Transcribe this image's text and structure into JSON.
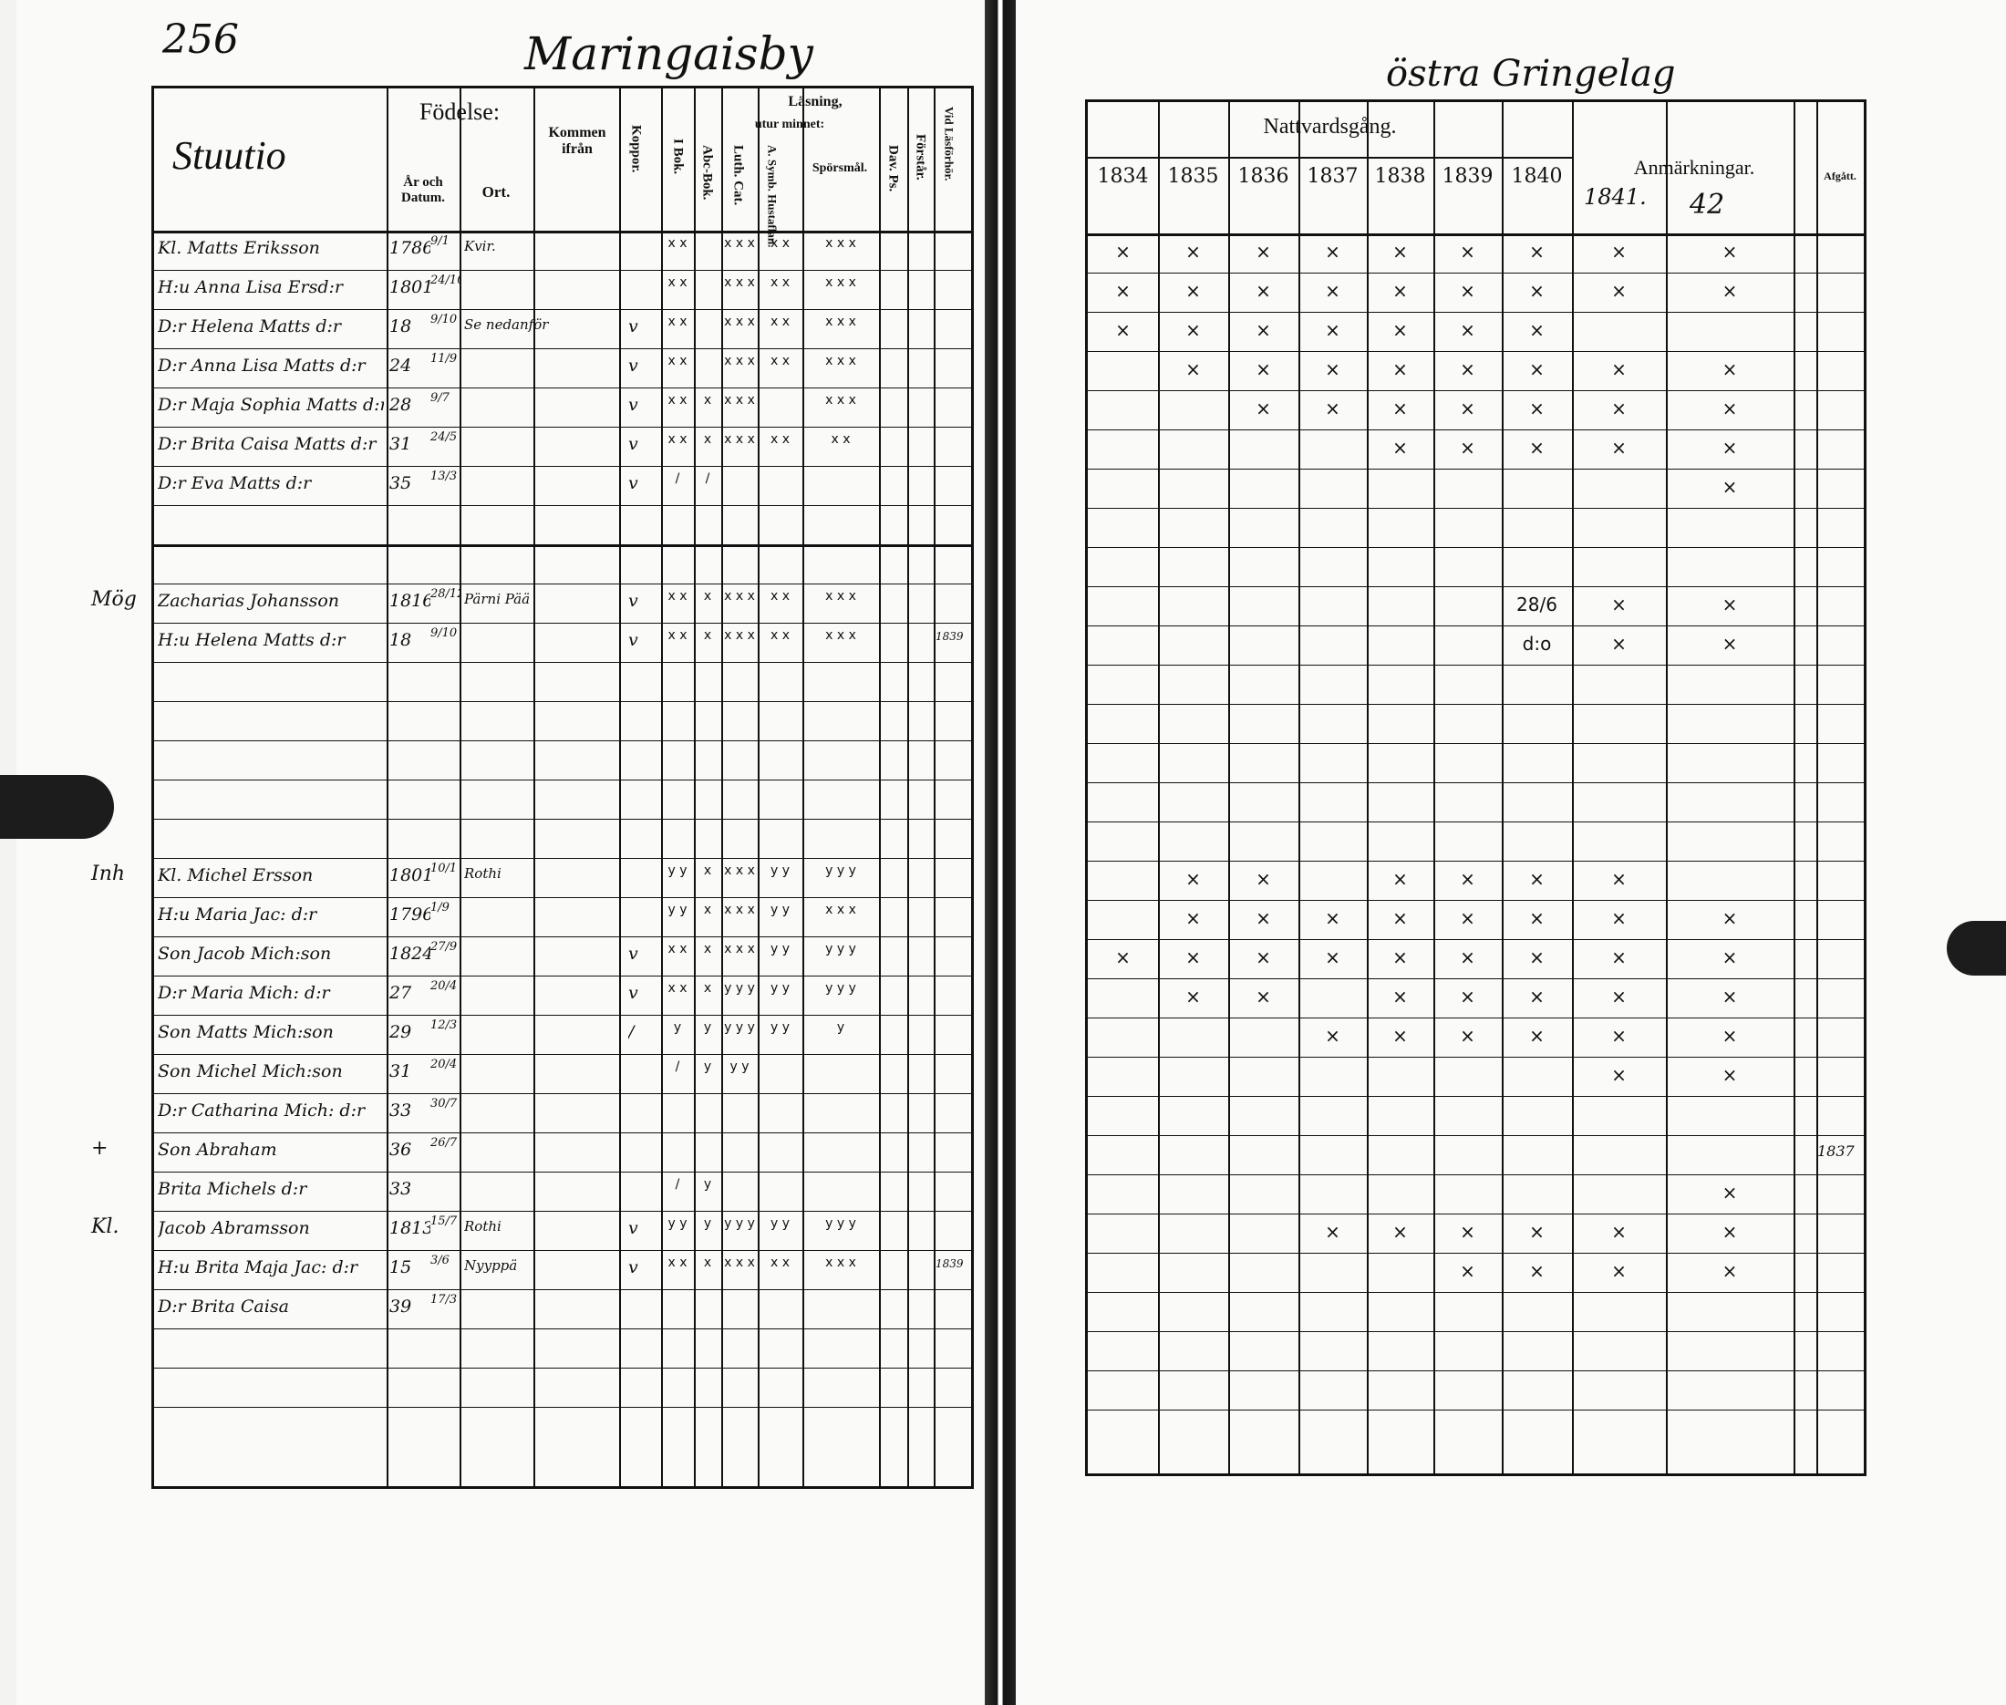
{
  "left": {
    "page_number": "256",
    "village": "Maringaisby",
    "name_header": "Stuutio",
    "headers": {
      "fodelse": "Födelse:",
      "ar_och_datum": "År och Datum.",
      "ort": "Ort.",
      "kommen_ifran": "Kommen ifrån",
      "koppor": "Koppor.",
      "lasning": "Läsning,",
      "i_bok": "I Bok.",
      "utur_minnet": "utur minnet:",
      "abc_bok": "Abc-Bok.",
      "luth_cat": "Luth. Cat.",
      "a_symb": "A. Symb. Hustaflan.",
      "sporsmal": "Spörsmål.",
      "dav_ps": "Dav. Ps.",
      "forstar": "Förstår.",
      "vid_lasforhor": "Vid Läsförhör."
    },
    "rows": [
      {
        "row": 0,
        "margin": "",
        "name": "Kl. Matts Eriksson",
        "year": "1786",
        "date": "9/1",
        "ort": "Kvir.",
        "kommen": "",
        "koppor": "",
        "reading": [
          "x x",
          "",
          "x x x",
          "x x",
          "x x x"
        ],
        "vid": ""
      },
      {
        "row": 1,
        "margin": "",
        "name": "H:u Anna Lisa Ersd:r",
        "year": "1801",
        "date": "24/10",
        "ort": "",
        "kommen": "",
        "koppor": "",
        "reading": [
          "x x",
          "",
          "x x x",
          "x x",
          "x x x"
        ],
        "vid": ""
      },
      {
        "row": 2,
        "margin": "",
        "name": "D:r Helena Matts d:r",
        "year": "18",
        "date": "9/10",
        "ort": "",
        "kommen": "Se nedanför",
        "koppor": "v",
        "reading": [
          "x x",
          "",
          "x x x",
          "x x",
          "x x x"
        ],
        "vid": ""
      },
      {
        "row": 3,
        "margin": "",
        "name": "D:r Anna Lisa Matts d:r",
        "year": "24",
        "date": "11/9",
        "ort": "",
        "kommen": "",
        "koppor": "v",
        "reading": [
          "x x",
          "",
          "x x x",
          "x x",
          "x x x"
        ],
        "vid": ""
      },
      {
        "row": 4,
        "margin": "",
        "name": "D:r Maja Sophia Matts d:r",
        "year": "28",
        "date": "9/7",
        "ort": "",
        "kommen": "",
        "koppor": "v",
        "reading": [
          "x x",
          "x",
          "x x x",
          "",
          "x x x"
        ],
        "vid": ""
      },
      {
        "row": 5,
        "margin": "",
        "name": "D:r Brita Caisa Matts d:r",
        "year": "31",
        "date": "24/5",
        "ort": "",
        "kommen": "",
        "koppor": "v",
        "reading": [
          "x x",
          "x",
          "x x x",
          "x x",
          "x x"
        ],
        "vid": ""
      },
      {
        "row": 6,
        "margin": "",
        "name": "D:r Eva Matts d:r",
        "year": "35",
        "date": "13/3",
        "ort": "",
        "kommen": "",
        "koppor": "v",
        "reading": [
          "/",
          "/",
          "",
          "",
          ""
        ],
        "vid": ""
      },
      {
        "row": 9,
        "margin": "Mög",
        "name": "Zacharias Johansson",
        "year": "1816",
        "date": "28/12",
        "ort": "Pärni Pää",
        "kommen": "",
        "koppor": "v",
        "reading": [
          "x x",
          "x",
          "x x x",
          "x x",
          "x x x"
        ],
        "vid": ""
      },
      {
        "row": 10,
        "margin": "",
        "name": "H:u Helena Matts d:r",
        "year": "18",
        "date": "9/10",
        "ort": "",
        "kommen": "",
        "koppor": "v",
        "reading": [
          "x x",
          "x",
          "x x x",
          "x x",
          "x x x"
        ],
        "vid": "1839"
      },
      {
        "row": 16,
        "margin": "Inh",
        "name": "Kl. Michel Ersson",
        "year": "1801",
        "date": "10/1",
        "ort": "Rothi",
        "kommen": "",
        "koppor": "",
        "reading": [
          "y y",
          "x",
          "x x x",
          "y y",
          "y y y"
        ],
        "vid": ""
      },
      {
        "row": 17,
        "margin": "",
        "name": "H:u Maria Jac: d:r",
        "year": "1796",
        "date": "1/9",
        "ort": "",
        "kommen": "",
        "koppor": "",
        "reading": [
          "y y",
          "x",
          "x x x",
          "y y",
          "x x x"
        ],
        "vid": ""
      },
      {
        "row": 18,
        "margin": "",
        "name": "Son Jacob Mich:son",
        "year": "1824",
        "date": "27/9",
        "ort": "",
        "kommen": "",
        "koppor": "v",
        "reading": [
          "x x",
          "x",
          "x x x",
          "y y",
          "y y y"
        ],
        "vid": ""
      },
      {
        "row": 19,
        "margin": "",
        "name": "D:r Maria Mich: d:r",
        "year": "27",
        "date": "20/4",
        "ort": "",
        "kommen": "",
        "koppor": "v",
        "reading": [
          "x x",
          "x",
          "y y y",
          "y y",
          "y y y"
        ],
        "vid": ""
      },
      {
        "row": 20,
        "margin": "",
        "name": "Son Matts Mich:son",
        "year": "29",
        "date": "12/3",
        "ort": "",
        "kommen": "",
        "koppor": "/",
        "reading": [
          "y",
          "y",
          "y y y",
          "y y",
          "y"
        ],
        "vid": ""
      },
      {
        "row": 21,
        "margin": "",
        "name": "Son Michel Mich:son",
        "year": "31",
        "date": "20/4",
        "ort": "",
        "kommen": "",
        "koppor": "",
        "reading": [
          "/",
          "y",
          "y y",
          "",
          ""
        ],
        "vid": ""
      },
      {
        "row": 22,
        "margin": "",
        "name": "D:r Catharina Mich: d:r",
        "year": "33",
        "date": "30/7",
        "ort": "",
        "kommen": "",
        "koppor": "",
        "reading": [
          "",
          "",
          "",
          "",
          ""
        ],
        "vid": ""
      },
      {
        "row": 23,
        "margin": "+",
        "name": "Son Abraham",
        "year": "36",
        "date": "26/7",
        "ort": "",
        "kommen": "",
        "koppor": "",
        "reading": [
          "",
          "",
          "",
          "",
          ""
        ],
        "vid": ""
      },
      {
        "row": 24,
        "margin": "",
        "name": "Brita Michels d:r",
        "year": "33",
        "date": "",
        "ort": "",
        "kommen": "",
        "koppor": "",
        "reading": [
          "/",
          "y",
          "",
          "",
          ""
        ],
        "vid": ""
      },
      {
        "row": 25,
        "margin": "Kl.",
        "name": "Jacob Abramsson",
        "year": "1813",
        "date": "15/7",
        "ort": "Rothi",
        "kommen": "",
        "koppor": "v",
        "reading": [
          "y y",
          "y",
          "y y y",
          "y y",
          "y y y"
        ],
        "vid": ""
      },
      {
        "row": 26,
        "margin": "",
        "name": "H:u Brita Maja Jac: d:r",
        "year": "15",
        "date": "3/6",
        "ort": "Nyyppä",
        "kommen": "",
        "koppor": "v",
        "reading": [
          "x x",
          "x",
          "x x x",
          "x x",
          "x x x"
        ],
        "vid": "1839"
      },
      {
        "row": 27,
        "margin": "",
        "name": "D:r Brita Caisa",
        "year": "39",
        "date": "17/3",
        "ort": "",
        "kommen": "",
        "koppor": "",
        "reading": [
          "",
          "",
          "",
          "",
          ""
        ],
        "vid": ""
      }
    ]
  },
  "right": {
    "title": "östra Gringelag",
    "nattvardsgang": "Nattvardsgång.",
    "years": [
      "1834",
      "1835",
      "1836",
      "1837",
      "1838",
      "1839",
      "1840"
    ],
    "anmarkningar": "Anmärkningar.",
    "remark_years": [
      "1841.",
      "42"
    ],
    "afgatt": "Afgått.",
    "rows": [
      {
        "row": 0,
        "marks": [
          "×",
          "×",
          "×",
          "×",
          "×",
          "×",
          "×",
          "×",
          "×"
        ],
        "afgatt": ""
      },
      {
        "row": 1,
        "marks": [
          "×",
          "×",
          "×",
          "×",
          "×",
          "×",
          "×",
          "×",
          "×"
        ],
        "afgatt": ""
      },
      {
        "row": 2,
        "marks": [
          "×",
          "×",
          "×",
          "×",
          "×",
          "×",
          "×",
          "",
          ""
        ],
        "afgatt": ""
      },
      {
        "row": 3,
        "marks": [
          "",
          "×",
          "×",
          "×",
          "×",
          "×",
          "×",
          "×",
          "×"
        ],
        "afgatt": ""
      },
      {
        "row": 4,
        "marks": [
          "",
          "",
          "×",
          "×",
          "×",
          "×",
          "×",
          "×",
          "×"
        ],
        "afgatt": ""
      },
      {
        "row": 5,
        "marks": [
          "",
          "",
          "",
          "",
          "×",
          "×",
          "×",
          "×",
          "×"
        ],
        "afgatt": ""
      },
      {
        "row": 6,
        "marks": [
          "",
          "",
          "",
          "",
          "",
          "",
          "",
          "",
          "×"
        ],
        "afgatt": ""
      },
      {
        "row": 9,
        "marks": [
          "",
          "",
          "",
          "",
          "",
          "",
          "28/6",
          "×",
          "×"
        ],
        "afgatt": ""
      },
      {
        "row": 10,
        "marks": [
          "",
          "",
          "",
          "",
          "",
          "",
          "d:o",
          "×",
          "×"
        ],
        "afgatt": ""
      },
      {
        "row": 16,
        "marks": [
          "",
          "×",
          "×",
          "",
          "×",
          "×",
          "×",
          "×",
          ""
        ],
        "afgatt": ""
      },
      {
        "row": 17,
        "marks": [
          "",
          "×",
          "×",
          "×",
          "×",
          "×",
          "×",
          "×",
          "×"
        ],
        "afgatt": ""
      },
      {
        "row": 18,
        "marks": [
          "×",
          "×",
          "×",
          "×",
          "×",
          "×",
          "×",
          "×",
          "×"
        ],
        "afgatt": ""
      },
      {
        "row": 19,
        "marks": [
          "",
          "×",
          "×",
          "",
          "×",
          "×",
          "×",
          "×",
          "×"
        ],
        "afgatt": ""
      },
      {
        "row": 20,
        "marks": [
          "",
          "",
          "",
          "×",
          "×",
          "×",
          "×",
          "×",
          "×"
        ],
        "afgatt": ""
      },
      {
        "row": 21,
        "marks": [
          "",
          "",
          "",
          "",
          "",
          "",
          "",
          "×",
          "×"
        ],
        "afgatt": ""
      },
      {
        "row": 23,
        "marks": [
          "",
          "",
          "",
          "",
          "",
          "",
          "",
          "",
          ""
        ],
        "afgatt": "1837"
      },
      {
        "row": 24,
        "marks": [
          "",
          "",
          "",
          "",
          "",
          "",
          "",
          "",
          "×"
        ],
        "afgatt": ""
      },
      {
        "row": 25,
        "marks": [
          "",
          "",
          "",
          "×",
          "×",
          "×",
          "×",
          "×",
          "×"
        ],
        "afgatt": ""
      },
      {
        "row": 26,
        "marks": [
          "",
          "",
          "",
          "",
          "",
          "×",
          "×",
          "×",
          "×"
        ],
        "afgatt": ""
      }
    ]
  }
}
